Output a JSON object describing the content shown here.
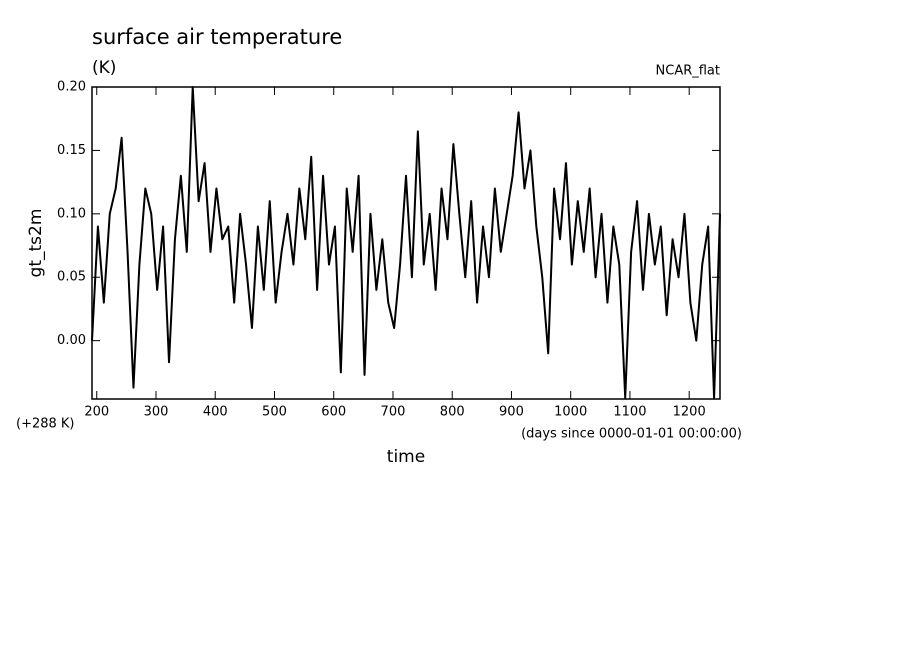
{
  "chart_data": {
    "type": "line",
    "title": "surface air temperature",
    "subtitle": "(K)",
    "annotation_right": "NCAR_flat",
    "y_label": "gt_ts2m",
    "y_offset_label": "(+288 K)",
    "x_units_label": "(days since 0000-01-01 00:00:00)",
    "x_label": "time",
    "xlim": [
      192,
      1252
    ],
    "xticks": [
      200,
      300,
      400,
      500,
      600,
      700,
      800,
      900,
      1000,
      1100,
      1200
    ],
    "ylim": [
      -0.046,
      0.2
    ],
    "yticks": [
      {
        "value": 0,
        "label": "0.00"
      },
      {
        "value": 0.05,
        "label": "0.05"
      },
      {
        "value": 0.1,
        "label": "0.10"
      },
      {
        "value": 0.15,
        "label": "0.15"
      },
      {
        "value": 0.2,
        "label": "0.20"
      }
    ],
    "series": [
      {
        "color": "#000000",
        "x": [
          192,
          202,
          212,
          222,
          232,
          242,
          252,
          262,
          272,
          282,
          292,
          302,
          312,
          322,
          332,
          342,
          352,
          362,
          372,
          382,
          392,
          402,
          412,
          422,
          432,
          442,
          452,
          462,
          472,
          482,
          492,
          502,
          512,
          522,
          532,
          542,
          552,
          562,
          572,
          582,
          592,
          602,
          612,
          622,
          632,
          642,
          652,
          662,
          672,
          682,
          692,
          702,
          712,
          722,
          732,
          742,
          752,
          762,
          772,
          782,
          792,
          802,
          812,
          822,
          832,
          842,
          852,
          862,
          872,
          882,
          892,
          902,
          912,
          922,
          932,
          942,
          952,
          962,
          972,
          982,
          992,
          1002,
          1012,
          1022,
          1032,
          1042,
          1052,
          1062,
          1072,
          1082,
          1092,
          1102,
          1112,
          1122,
          1132,
          1142,
          1152,
          1162,
          1172,
          1182,
          1192,
          1202,
          1212,
          1222,
          1232,
          1242,
          1252
        ],
        "values": [
          0.0,
          0.09,
          0.03,
          0.1,
          0.12,
          0.16,
          0.07,
          -0.037,
          0.06,
          0.12,
          0.1,
          0.04,
          0.09,
          -0.017,
          0.08,
          0.13,
          0.07,
          0.2,
          0.11,
          0.14,
          0.07,
          0.12,
          0.08,
          0.09,
          0.03,
          0.1,
          0.06,
          0.01,
          0.09,
          0.04,
          0.11,
          0.03,
          0.07,
          0.1,
          0.06,
          0.12,
          0.08,
          0.145,
          0.04,
          0.13,
          0.06,
          0.09,
          -0.025,
          0.12,
          0.07,
          0.13,
          -0.027,
          0.1,
          0.04,
          0.08,
          0.03,
          0.01,
          0.06,
          0.13,
          0.05,
          0.165,
          0.06,
          0.1,
          0.04,
          0.12,
          0.08,
          0.155,
          0.1,
          0.05,
          0.11,
          0.03,
          0.09,
          0.05,
          0.12,
          0.07,
          0.1,
          0.13,
          0.18,
          0.12,
          0.15,
          0.09,
          0.05,
          -0.01,
          0.12,
          0.08,
          0.14,
          0.06,
          0.11,
          0.07,
          0.12,
          0.05,
          0.1,
          0.03,
          0.09,
          0.06,
          -0.045,
          0.07,
          0.11,
          0.04,
          0.1,
          0.06,
          0.09,
          0.02,
          0.08,
          0.05,
          0.1,
          0.03,
          0.0,
          0.06,
          0.09,
          -0.045,
          0.1
        ]
      }
    ]
  }
}
